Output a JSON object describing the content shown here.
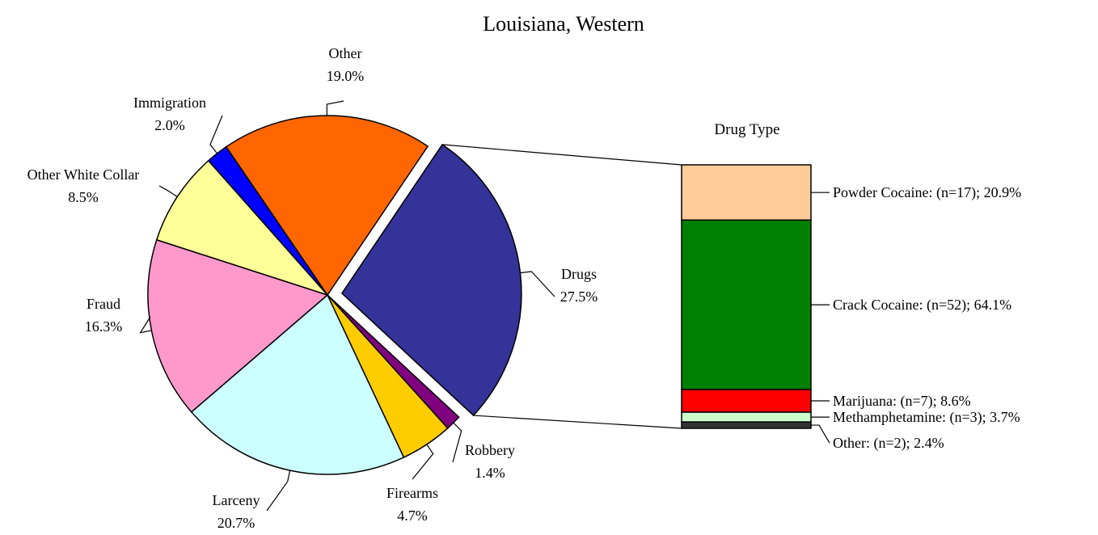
{
  "chart_data": [
    {
      "type": "pie",
      "title": "Louisiana, Western",
      "slices": [
        {
          "name": "Drugs",
          "value": 27.5,
          "label": "27.5%",
          "color": "#333399",
          "exploded": true
        },
        {
          "name": "Robbery",
          "value": 1.4,
          "label": "1.4%",
          "color": "#800080"
        },
        {
          "name": "Firearms",
          "value": 4.7,
          "label": "4.7%",
          "color": "#ffcc00"
        },
        {
          "name": "Larceny",
          "value": 20.7,
          "label": "20.7%",
          "color": "#ccffff"
        },
        {
          "name": "Fraud",
          "value": 16.3,
          "label": "16.3%",
          "color": "#ff99cc"
        },
        {
          "name": "Other White Collar",
          "value": 8.5,
          "label": "8.5%",
          "color": "#ffff99"
        },
        {
          "name": "Immigration",
          "value": 2.0,
          "label": "2.0%",
          "color": "#0000ff"
        },
        {
          "name": "Other",
          "value": 19.0,
          "label": "19.0%",
          "color": "#ff6600"
        }
      ]
    },
    {
      "type": "bar",
      "stacked": true,
      "title": "Drug Type",
      "segments": [
        {
          "name": "Powder Cocaine",
          "n": 17,
          "percent": 20.9,
          "label": "Powder Cocaine: (n=17); 20.9%",
          "color": "#ffcc99"
        },
        {
          "name": "Crack Cocaine",
          "n": 52,
          "percent": 64.1,
          "label": "Crack Cocaine: (n=52); 64.1%",
          "color": "#008000"
        },
        {
          "name": "Marijuana",
          "n": 7,
          "percent": 8.6,
          "label": "Marijuana: (n=7); 8.6%",
          "color": "#ff0000"
        },
        {
          "name": "Methamphetamine",
          "n": 3,
          "percent": 3.7,
          "label": "Methamphetamine: (n=3); 3.7%",
          "color": "#ccffcc"
        },
        {
          "name": "Other",
          "n": 2,
          "percent": 2.4,
          "label": "Other: (n=2); 2.4%",
          "color": "#333333"
        }
      ]
    }
  ]
}
